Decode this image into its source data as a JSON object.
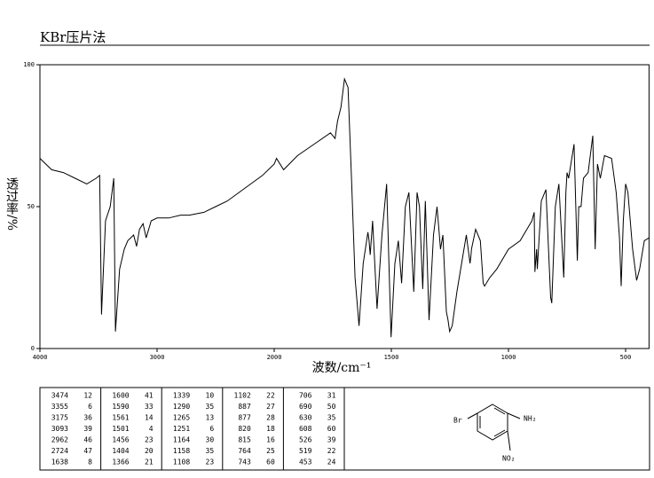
{
  "header": {
    "title": "KBr压片法"
  },
  "chart_data": {
    "type": "line",
    "x_label": "波数/cm⁻¹",
    "y_label": "透过率/%",
    "xlim": [
      4000,
      400
    ],
    "xticks": [
      4000,
      3000,
      2000,
      1500,
      1000,
      500
    ],
    "ylim": [
      0,
      100
    ],
    "yticks": [
      0,
      50,
      100
    ],
    "color": "#000000",
    "x": [
      4000,
      3900,
      3800,
      3700,
      3600,
      3520,
      3490,
      3474,
      3440,
      3400,
      3370,
      3355,
      3320,
      3280,
      3250,
      3200,
      3175,
      3150,
      3120,
      3093,
      3050,
      3000,
      2962,
      2900,
      2800,
      2724,
      2600,
      2500,
      2400,
      2300,
      2200,
      2100,
      2050,
      2000,
      1990,
      1960,
      1900,
      1830,
      1760,
      1740,
      1730,
      1715,
      1700,
      1685,
      1670,
      1655,
      1638,
      1620,
      1600,
      1595,
      1590,
      1580,
      1561,
      1540,
      1520,
      1501,
      1485,
      1470,
      1456,
      1440,
      1425,
      1404,
      1390,
      1380,
      1366,
      1355,
      1339,
      1320,
      1305,
      1290,
      1280,
      1265,
      1258,
      1251,
      1240,
      1220,
      1200,
      1180,
      1164,
      1160,
      1158,
      1140,
      1120,
      1108,
      1102,
      1080,
      1050,
      1000,
      950,
      900,
      890,
      887,
      880,
      877,
      860,
      840,
      820,
      815,
      800,
      785,
      764,
      755,
      750,
      743,
      720,
      706,
      700,
      690,
      680,
      660,
      640,
      630,
      620,
      608,
      590,
      560,
      540,
      526,
      519,
      510,
      500,
      490,
      470,
      453,
      440,
      420,
      400
    ],
    "values": [
      67,
      63,
      62,
      60,
      58,
      60,
      61,
      12,
      45,
      50,
      60,
      6,
      28,
      35,
      38,
      40,
      36,
      42,
      44,
      39,
      45,
      46,
      46,
      46,
      47,
      47,
      48,
      50,
      52,
      55,
      58,
      61,
      63,
      65,
      67,
      63,
      68,
      72,
      76,
      74,
      80,
      85,
      95,
      92,
      60,
      25,
      8,
      30,
      41,
      38,
      33,
      45,
      14,
      40,
      58,
      4,
      30,
      38,
      23,
      50,
      55,
      20,
      55,
      50,
      21,
      52,
      10,
      40,
      50,
      35,
      40,
      13,
      10,
      6,
      8,
      20,
      30,
      40,
      30,
      33,
      35,
      42,
      38,
      23,
      22,
      25,
      28,
      35,
      38,
      45,
      48,
      27,
      35,
      28,
      52,
      56,
      18,
      16,
      50,
      58,
      25,
      55,
      62,
      60,
      72,
      31,
      50,
      50,
      60,
      62,
      75,
      35,
      65,
      60,
      68,
      67,
      55,
      39,
      22,
      45,
      58,
      55,
      35,
      24,
      28,
      38,
      39
    ]
  },
  "peak_table": [
    [
      [
        3474,
        12
      ],
      [
        3355,
        6
      ],
      [
        3175,
        36
      ],
      [
        3093,
        39
      ],
      [
        2962,
        46
      ],
      [
        2724,
        47
      ],
      [
        1638,
        8
      ]
    ],
    [
      [
        1600,
        41
      ],
      [
        1590,
        33
      ],
      [
        1561,
        14
      ],
      [
        1501,
        4
      ],
      [
        1456,
        23
      ],
      [
        1404,
        20
      ],
      [
        1366,
        21
      ]
    ],
    [
      [
        1339,
        10
      ],
      [
        1290,
        35
      ],
      [
        1265,
        13
      ],
      [
        1251,
        6
      ],
      [
        1164,
        30
      ],
      [
        1158,
        35
      ],
      [
        1108,
        23
      ]
    ],
    [
      [
        1102,
        22
      ],
      [
        887,
        27
      ],
      [
        877,
        28
      ],
      [
        820,
        18
      ],
      [
        815,
        16
      ],
      [
        764,
        25
      ],
      [
        743,
        60
      ]
    ],
    [
      [
        706,
        31
      ],
      [
        690,
        50
      ],
      [
        630,
        35
      ],
      [
        608,
        60
      ],
      [
        526,
        39
      ],
      [
        519,
        22
      ],
      [
        453,
        24
      ]
    ]
  ],
  "structure": {
    "left": "Br",
    "right": "NH₂",
    "bottom": "NO₂"
  }
}
